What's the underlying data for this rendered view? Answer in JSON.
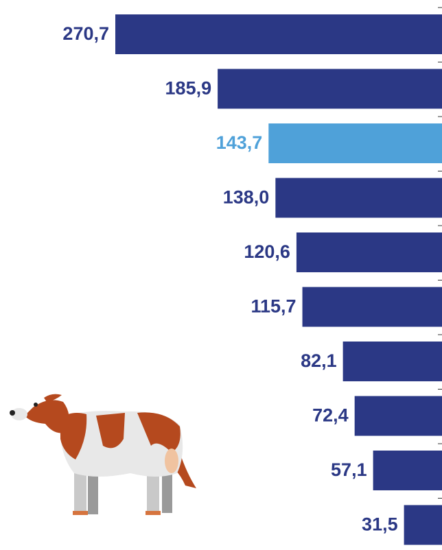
{
  "chart_data": {
    "type": "bar",
    "orientation": "horizontal",
    "values": [
      270.7,
      185.9,
      143.7,
      138.0,
      120.6,
      115.7,
      82.1,
      72.4,
      57.1,
      31.5
    ],
    "value_labels": [
      "270,7",
      "185,9",
      "143,7",
      "138,0",
      "120,6",
      "115,7",
      "82,1",
      "72,4",
      "57,1",
      "31,5"
    ],
    "colors": [
      "#2b3885",
      "#2b3885",
      "#4fa1d9",
      "#2b3885",
      "#2b3885",
      "#2b3885",
      "#2b3885",
      "#2b3885",
      "#2b3885",
      "#2b3885"
    ]
  }
}
